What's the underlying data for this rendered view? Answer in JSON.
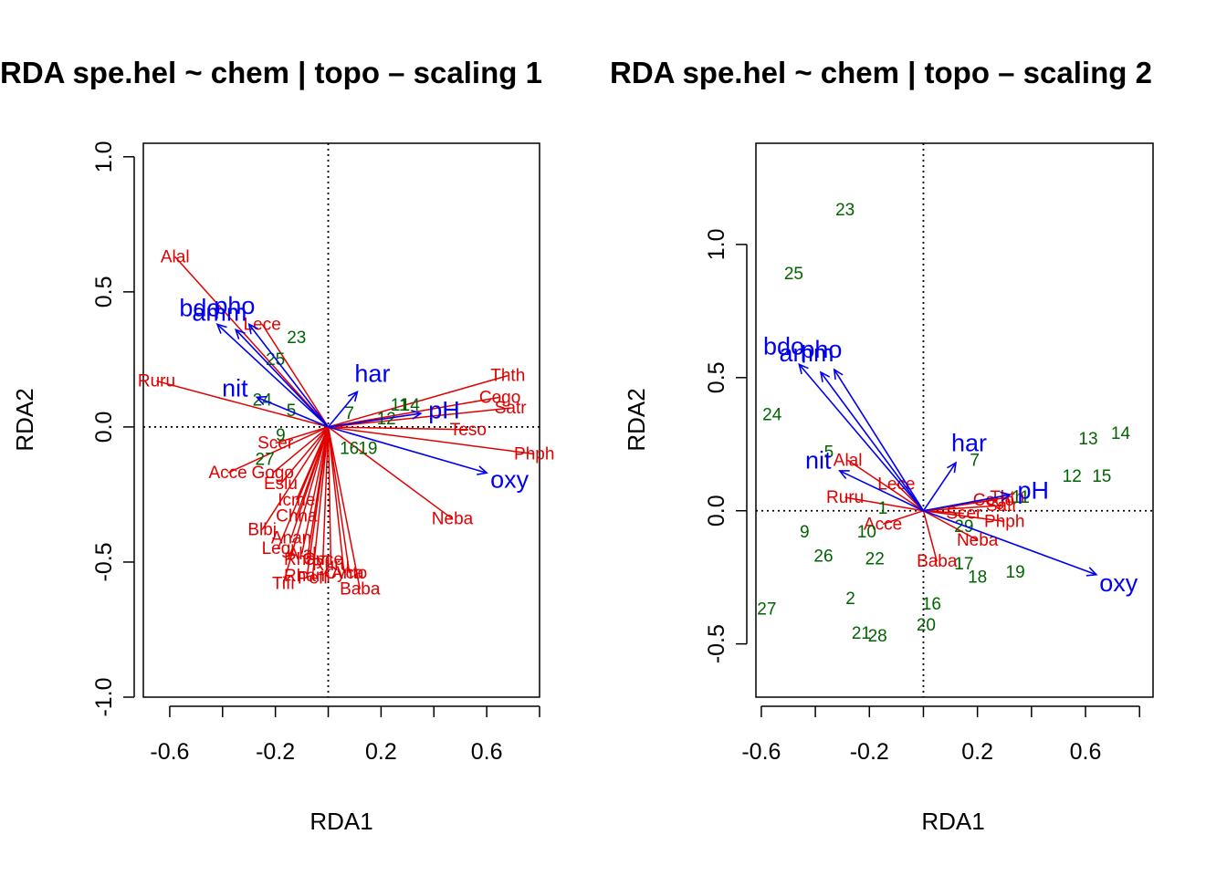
{
  "chart_data": [
    {
      "type": "scatter",
      "title": "RDA spe.hel ~ chem | topo – scaling 1",
      "xlabel": "RDA1",
      "ylabel": "RDA2",
      "xlim": [
        -0.7,
        0.8
      ],
      "ylim": [
        -1.0,
        1.05
      ],
      "xticks": [
        -0.6,
        -0.2,
        0.2,
        0.6
      ],
      "xtick_labels": [
        "-0.6",
        "-0.2",
        "0.2",
        "0.6"
      ],
      "yticks": [
        -1.0,
        -0.5,
        0.0,
        0.5,
        1.0
      ],
      "ytick_labels": [
        "-1.0",
        "-0.5",
        "0.0",
        "0.5",
        "1.0"
      ],
      "reference_lines": {
        "x": 0,
        "y": 0,
        "style": "dotted"
      },
      "colors": {
        "sites": "#006400",
        "species": "#e00000",
        "env": "#0000ee",
        "axes": "#000000"
      },
      "sites": [
        {
          "label": "7",
          "x": 0.08,
          "y": 0.05
        },
        {
          "label": "23",
          "x": -0.12,
          "y": 0.33
        },
        {
          "label": "25",
          "x": -0.2,
          "y": 0.25
        },
        {
          "label": "24",
          "x": -0.25,
          "y": 0.1
        },
        {
          "label": "5",
          "x": -0.14,
          "y": 0.06
        },
        {
          "label": "9",
          "x": -0.18,
          "y": -0.03
        },
        {
          "label": "27",
          "x": -0.24,
          "y": -0.12
        },
        {
          "label": "11",
          "x": 0.27,
          "y": 0.08
        },
        {
          "label": "14",
          "x": 0.31,
          "y": 0.08
        },
        {
          "label": "12",
          "x": 0.22,
          "y": 0.03
        },
        {
          "label": "19",
          "x": 0.15,
          "y": -0.08
        },
        {
          "label": "16",
          "x": 0.08,
          "y": -0.08
        }
      ],
      "species": [
        {
          "label": "Alal",
          "x": -0.58,
          "y": 0.63
        },
        {
          "label": "Lece",
          "x": -0.25,
          "y": 0.38
        },
        {
          "label": "Ruru",
          "x": -0.65,
          "y": 0.17
        },
        {
          "label": "Thth",
          "x": 0.68,
          "y": 0.19
        },
        {
          "label": "Cogo",
          "x": 0.65,
          "y": 0.11
        },
        {
          "label": "Satr",
          "x": 0.69,
          "y": 0.07
        },
        {
          "label": "Teso",
          "x": 0.53,
          "y": -0.01
        },
        {
          "label": "Phph",
          "x": 0.78,
          "y": -0.1
        },
        {
          "label": "Neba",
          "x": 0.47,
          "y": -0.34
        },
        {
          "label": "Scer",
          "x": -0.2,
          "y": -0.06
        },
        {
          "label": "Acce",
          "x": -0.38,
          "y": -0.17
        },
        {
          "label": "Gogo",
          "x": -0.21,
          "y": -0.17
        },
        {
          "label": "Eslu",
          "x": -0.18,
          "y": -0.21
        },
        {
          "label": "Icme",
          "x": -0.12,
          "y": -0.27
        },
        {
          "label": "Chna",
          "x": -0.12,
          "y": -0.33
        },
        {
          "label": "Blbj",
          "x": -0.25,
          "y": -0.38
        },
        {
          "label": "Anan",
          "x": -0.14,
          "y": -0.41
        },
        {
          "label": "Legi",
          "x": -0.19,
          "y": -0.45
        },
        {
          "label": "Alal",
          "x": -0.1,
          "y": -0.47
        },
        {
          "label": "Rham",
          "x": -0.08,
          "y": -0.49
        },
        {
          "label": "Gyce",
          "x": -0.02,
          "y": -0.49
        },
        {
          "label": "Ruru",
          "x": 0.01,
          "y": -0.51
        },
        {
          "label": "Pefl",
          "x": -0.06,
          "y": -0.56
        },
        {
          "label": "Cyca",
          "x": 0.06,
          "y": -0.54
        },
        {
          "label": "Anto",
          "x": 0.08,
          "y": -0.54
        },
        {
          "label": "Tifi",
          "x": -0.17,
          "y": -0.58
        },
        {
          "label": "Rham",
          "x": -0.08,
          "y": -0.55
        },
        {
          "label": "Baba",
          "x": 0.12,
          "y": -0.6
        }
      ],
      "env": [
        {
          "label": "bdo",
          "x": -0.42,
          "y": 0.38
        },
        {
          "label": "pho",
          "x": -0.3,
          "y": 0.38
        },
        {
          "label": "amm",
          "x": -0.35,
          "y": 0.36
        },
        {
          "label": "nit",
          "x": -0.27,
          "y": 0.11
        },
        {
          "label": "har",
          "x": 0.11,
          "y": 0.13
        },
        {
          "label": "pH",
          "x": 0.35,
          "y": 0.05
        },
        {
          "label": "oxy",
          "x": 0.6,
          "y": -0.17
        }
      ]
    },
    {
      "type": "scatter",
      "title": "RDA spe.hel ~ chem | topo – scaling 2",
      "xlabel": "RDA1",
      "ylabel": "RDA2",
      "xlim": [
        -0.62,
        0.85
      ],
      "ylim": [
        -0.7,
        1.38
      ],
      "xticks": [
        -0.6,
        -0.2,
        0.2,
        0.6
      ],
      "xtick_labels": [
        "-0.6",
        "-0.2",
        "0.2",
        "0.6"
      ],
      "yticks": [
        -0.5,
        0.0,
        0.5,
        1.0
      ],
      "ytick_labels": [
        "-0.5",
        "0.0",
        "0.5",
        "1.0"
      ],
      "reference_lines": {
        "x": 0,
        "y": 0,
        "style": "dotted"
      },
      "colors": {
        "sites": "#006400",
        "species": "#e00000",
        "env": "#0000ee",
        "axes": "#000000"
      },
      "sites": [
        {
          "label": "23",
          "x": -0.29,
          "y": 1.13
        },
        {
          "label": "25",
          "x": -0.48,
          "y": 0.89
        },
        {
          "label": "24",
          "x": -0.56,
          "y": 0.36
        },
        {
          "label": "5",
          "x": -0.35,
          "y": 0.22
        },
        {
          "label": "7",
          "x": 0.19,
          "y": 0.19
        },
        {
          "label": "13",
          "x": 0.61,
          "y": 0.27
        },
        {
          "label": "14",
          "x": 0.73,
          "y": 0.29
        },
        {
          "label": "12",
          "x": 0.55,
          "y": 0.13
        },
        {
          "label": "15",
          "x": 0.66,
          "y": 0.13
        },
        {
          "label": "1",
          "x": -0.15,
          "y": 0.01
        },
        {
          "label": "9",
          "x": -0.44,
          "y": -0.08
        },
        {
          "label": "10",
          "x": -0.21,
          "y": -0.08
        },
        {
          "label": "26",
          "x": -0.37,
          "y": -0.17
        },
        {
          "label": "22",
          "x": -0.18,
          "y": -0.18
        },
        {
          "label": "29",
          "x": 0.15,
          "y": -0.06
        },
        {
          "label": "17",
          "x": 0.15,
          "y": -0.2
        },
        {
          "label": "18",
          "x": 0.2,
          "y": -0.25
        },
        {
          "label": "19",
          "x": 0.34,
          "y": -0.23
        },
        {
          "label": "2",
          "x": -0.27,
          "y": -0.33
        },
        {
          "label": "16",
          "x": 0.03,
          "y": -0.35
        },
        {
          "label": "20",
          "x": 0.01,
          "y": -0.43
        },
        {
          "label": "27",
          "x": -0.58,
          "y": -0.37
        },
        {
          "label": "21",
          "x": -0.23,
          "y": -0.46
        },
        {
          "label": "28",
          "x": -0.17,
          "y": -0.47
        },
        {
          "label": "11",
          "x": 0.36,
          "y": 0.05
        }
      ],
      "species": [
        {
          "label": "Alal",
          "x": -0.28,
          "y": 0.19
        },
        {
          "label": "Lece",
          "x": -0.1,
          "y": 0.1
        },
        {
          "label": "Ruru",
          "x": -0.29,
          "y": 0.05
        },
        {
          "label": "Thth",
          "x": 0.31,
          "y": 0.05
        },
        {
          "label": "Cogo",
          "x": 0.26,
          "y": 0.04
        },
        {
          "label": "Satr",
          "x": 0.29,
          "y": 0.02
        },
        {
          "label": "Scer",
          "x": 0.15,
          "y": -0.01
        },
        {
          "label": "Phph",
          "x": 0.3,
          "y": -0.04
        },
        {
          "label": "Neba",
          "x": 0.2,
          "y": -0.11
        },
        {
          "label": "Acce",
          "x": -0.15,
          "y": -0.05
        },
        {
          "label": "Baba",
          "x": 0.05,
          "y": -0.19
        }
      ],
      "env": [
        {
          "label": "bdo",
          "x": -0.46,
          "y": 0.55
        },
        {
          "label": "pho",
          "x": -0.33,
          "y": 0.53
        },
        {
          "label": "amm",
          "x": -0.38,
          "y": 0.52
        },
        {
          "label": "nit",
          "x": -0.31,
          "y": 0.15
        },
        {
          "label": "har",
          "x": 0.12,
          "y": 0.18
        },
        {
          "label": "pH",
          "x": 0.32,
          "y": 0.06
        },
        {
          "label": "oxy",
          "x": 0.64,
          "y": -0.24
        }
      ]
    }
  ]
}
